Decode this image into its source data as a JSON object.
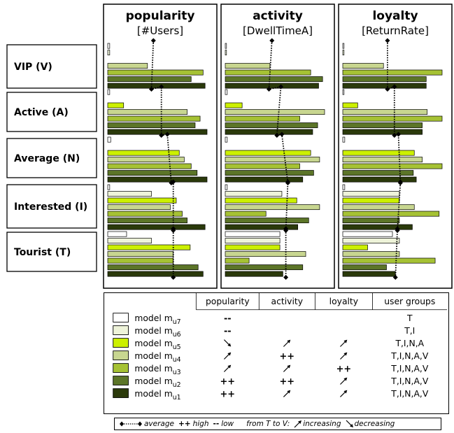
{
  "chart_data": {
    "type": "bar",
    "metrics": [
      {
        "title": "popularity",
        "subtitle": "[#Users]"
      },
      {
        "title": "activity",
        "subtitle": "[DwellTimeA]"
      },
      {
        "title": "loyalty",
        "subtitle": "[ReturnRate]"
      }
    ],
    "groups": [
      {
        "label": "VIP (V)",
        "code": "V"
      },
      {
        "label": "Active (A)",
        "code": "A"
      },
      {
        "label": "Average (N)",
        "code": "N"
      },
      {
        "label": "Interested (I)",
        "code": "I"
      },
      {
        "label": "Tourist (T)",
        "code": "T"
      }
    ],
    "models": [
      {
        "id": "u7",
        "color": "#ffffff"
      },
      {
        "id": "u6",
        "color": "#eef3d9"
      },
      {
        "id": "u5",
        "color": "#ccf000"
      },
      {
        "id": "u4",
        "color": "#c8d690"
      },
      {
        "id": "u3",
        "color": "#a6c234"
      },
      {
        "id": "u2",
        "color": "#5c7528"
      },
      {
        "id": "u1",
        "color": "#2b3a0b"
      }
    ],
    "values": [
      [
        {
          "u7": 0.02,
          "u6": 0.02,
          "u4": 0.4,
          "u3": 0.96,
          "u2": 0.84,
          "u1": 0.98,
          "avg_top": 0.46,
          "avg_bottom": 0.44
        },
        {
          "u7": 0.02,
          "u5": 0.16,
          "u4": 0.8,
          "u3": 0.93,
          "u2": 0.88,
          "u1": 1.0,
          "avg_top": 0.54,
          "avg_bottom": 0.54
        },
        {
          "u7": 0.03,
          "u5": 0.72,
          "u4": 0.77,
          "u3": 0.84,
          "u2": 0.9,
          "u1": 1.0,
          "avg_top": 0.6,
          "avg_bottom": 0.64
        },
        {
          "u7": 0.02,
          "u6": 0.44,
          "u5": 0.69,
          "u4": 0.63,
          "u3": 0.75,
          "u2": 0.8,
          "u1": 0.98,
          "avg_top": 0.66,
          "avg_bottom": 0.66
        },
        {
          "u7": 0.19,
          "u6": 0.44,
          "u5": 0.83,
          "u4": 0.66,
          "u3": 0.66,
          "u2": 0.91,
          "u1": 0.96,
          "avg_top": 0.66,
          "avg_bottom": 0.66
        }
      ],
      [
        {
          "u7": 0.01,
          "u6": 0.01,
          "u4": 0.45,
          "u3": 0.86,
          "u2": 0.98,
          "u1": 0.94,
          "avg_top": 0.47,
          "avg_bottom": 0.44
        },
        {
          "u7": 0.02,
          "u5": 0.17,
          "u4": 1.0,
          "u3": 0.75,
          "u2": 0.93,
          "u1": 0.88,
          "avg_top": 0.56,
          "avg_bottom": 0.52
        },
        {
          "u7": 0.02,
          "u5": 0.86,
          "u4": 0.95,
          "u3": 0.75,
          "u2": 0.89,
          "u1": 0.78,
          "avg_top": 0.57,
          "avg_bottom": 0.63
        },
        {
          "u7": 0.02,
          "u6": 0.57,
          "u5": 0.72,
          "u4": 0.95,
          "u3": 0.41,
          "u2": 0.84,
          "u1": 0.73,
          "avg_top": 0.63,
          "avg_bottom": 0.61
        },
        {
          "u7": 0.55,
          "u6": 0.55,
          "u5": 0.55,
          "u4": 0.81,
          "u3": 0.24,
          "u2": 0.78,
          "u1": 0.58,
          "avg_top": 0.61,
          "avg_bottom": 0.61
        }
      ],
      [
        {
          "u7": 0.01,
          "u6": 0.01,
          "u4": 0.41,
          "u3": 1.0,
          "u2": 0.84,
          "u1": 0.84,
          "avg_top": 0.45,
          "avg_bottom": 0.45
        },
        {
          "u7": 0.01,
          "u5": 0.15,
          "u4": 0.85,
          "u3": 1.0,
          "u2": 0.8,
          "u1": 0.8,
          "avg_top": 0.52,
          "avg_bottom": 0.52
        },
        {
          "u7": 0.02,
          "u5": 0.72,
          "u4": 0.8,
          "u3": 1.0,
          "u2": 0.71,
          "u1": 0.74,
          "avg_top": 0.56,
          "avg_bottom": 0.58
        },
        {
          "u7": 0.02,
          "u6": 0.57,
          "u5": 0.57,
          "u4": 0.72,
          "u3": 0.97,
          "u2": 0.57,
          "u1": 0.7,
          "avg_top": 0.58,
          "avg_bottom": 0.55
        },
        {
          "u7": 0.5,
          "u6": 0.57,
          "u5": 0.25,
          "u4": 0.57,
          "u3": 0.93,
          "u2": 0.44,
          "u1": 0.53,
          "avg_top": 0.55,
          "avg_bottom": 0.53
        }
      ]
    ]
  },
  "table": {
    "headers": [
      "",
      "popularity",
      "activity",
      "loyalty",
      "user groups"
    ],
    "rows": [
      {
        "model_text": "model m",
        "sub": "u7",
        "pop": "--",
        "act": "",
        "loy": "",
        "groups": "T"
      },
      {
        "model_text": "model m",
        "sub": "u6",
        "pop": "--",
        "act": "",
        "loy": "",
        "groups": "T,I"
      },
      {
        "model_text": "model m",
        "sub": "u5",
        "pop": "dec",
        "act": "inc",
        "loy": "inc",
        "groups": "T,I,N,A"
      },
      {
        "model_text": "model m",
        "sub": "u4",
        "pop": "inc",
        "act": "++",
        "loy": "inc",
        "groups": "T,I,N,A,V"
      },
      {
        "model_text": "model m",
        "sub": "u3",
        "pop": "inc",
        "act": "inc",
        "loy": "++",
        "groups": "T,I,N,A,V"
      },
      {
        "model_text": "model m",
        "sub": "u2",
        "pop": "++",
        "act": "++",
        "loy": "inc",
        "groups": "T,I,N,A,V"
      },
      {
        "model_text": "model m",
        "sub": "u1",
        "pop": "++",
        "act": "inc",
        "loy": "inc",
        "groups": "T,I,N,A,V"
      }
    ]
  },
  "footer": {
    "average": "average",
    "high_sym": "++",
    "high": "high",
    "low_sym": "--",
    "low": "low",
    "from": "from T to V:",
    "increasing": "increasing",
    "decreasing": "decreasing"
  }
}
